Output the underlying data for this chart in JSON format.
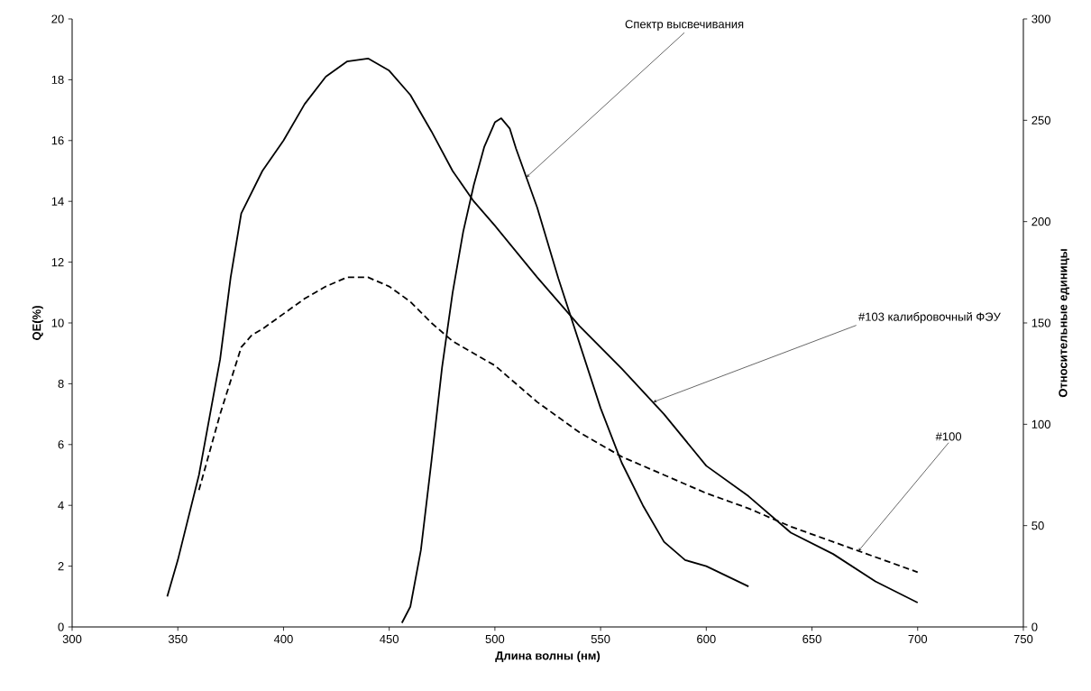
{
  "chart_data": {
    "type": "line",
    "xlabel": "Длина волны (нм)",
    "ylabel": "QE(%)",
    "y2label": "Относительные единицы",
    "xlim": [
      300,
      750
    ],
    "ylim": [
      0,
      20
    ],
    "y2lim": [
      0,
      300
    ],
    "xticks": [
      300,
      350,
      400,
      450,
      500,
      550,
      600,
      650,
      700,
      750
    ],
    "yticks": [
      0,
      2,
      4,
      6,
      8,
      10,
      12,
      14,
      16,
      18,
      20
    ],
    "y2ticks": [
      0,
      50,
      100,
      150,
      200,
      250,
      300
    ],
    "series": [
      {
        "color": "#000000",
        "line_style": "solid",
        "x": [
          345,
          350,
          360,
          370,
          375,
          380,
          390,
          400,
          410,
          420,
          430,
          440,
          450,
          460,
          470,
          480,
          490,
          500,
          520,
          540,
          560,
          580,
          600,
          620,
          640,
          660,
          680,
          700
        ],
        "values": [
          1.0,
          2.2,
          5.0,
          8.8,
          11.5,
          13.6,
          15.0,
          16.0,
          17.2,
          18.1,
          18.6,
          18.7,
          18.3,
          17.5,
          16.3,
          15.0,
          14.0,
          13.2,
          11.5,
          9.9,
          8.5,
          7.0,
          5.3,
          4.3,
          3.1,
          2.4,
          1.5,
          0.8
        ]
      },
      {
        "color": "#000000",
        "line_style": "dashed",
        "x": [
          360,
          370,
          380,
          385,
          390,
          400,
          410,
          420,
          430,
          440,
          450,
          460,
          470,
          480,
          500,
          520,
          540,
          560,
          580,
          600,
          620,
          640,
          660,
          680,
          700
        ],
        "values": [
          4.5,
          7.0,
          9.2,
          9.6,
          9.8,
          10.3,
          10.8,
          11.2,
          11.5,
          11.5,
          11.2,
          10.7,
          10.0,
          9.4,
          8.6,
          7.4,
          6.4,
          5.6,
          5.0,
          4.4,
          3.9,
          3.3,
          2.8,
          2.3,
          1.8
        ]
      },
      {
        "color": "#000000",
        "line_style": "solid",
        "axis": "y2",
        "x": [
          456,
          460,
          465,
          470,
          475,
          480,
          485,
          490,
          495,
          500,
          503,
          507,
          510,
          520,
          530,
          540,
          550,
          560,
          570,
          580,
          590,
          600,
          610,
          620
        ],
        "values": [
          2,
          10,
          38,
          82,
          128,
          165,
          195,
          218,
          237,
          249,
          251,
          246,
          236,
          207,
          172,
          140,
          108,
          81,
          60,
          42,
          33,
          30,
          25,
          20
        ]
      }
    ],
    "annotations": [
      {
        "text": "Спектр высвечивания",
        "x": 515,
        "y": 14.8
      },
      {
        "text": "#103 калибровочный ФЭУ",
        "x": 575,
        "y": 7.4
      },
      {
        "text": "#100",
        "x": 672,
        "y": 2.5
      }
    ]
  }
}
